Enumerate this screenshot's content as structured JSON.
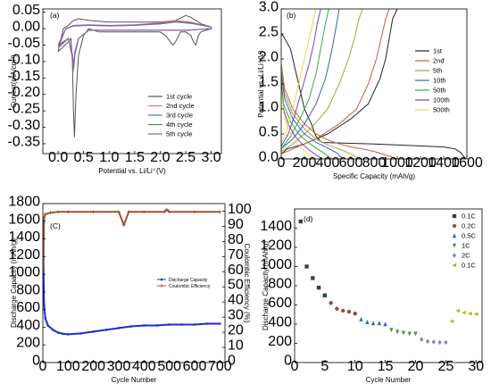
{
  "chart_data": [
    {
      "id": "a",
      "type": "line",
      "panel_label": "(a)",
      "xlabel": "Potential vs. Li/Li⁺(V)",
      "ylabel": "Current(mA/cm²)",
      "xlim": [
        -0.3,
        3.2
      ],
      "ylim": [
        -0.38,
        0.06
      ],
      "xticks": [
        0.0,
        0.5,
        1.0,
        1.5,
        2.0,
        2.5,
        3.0
      ],
      "xtick_labels": [
        "0.0",
        "0.5",
        "1.0",
        "1.5",
        "2.0",
        "2.5",
        "3.0"
      ],
      "yticks": [
        0.05,
        0.0,
        -0.05,
        -0.1,
        -0.15,
        -0.2,
        -0.25,
        -0.3,
        -0.35
      ],
      "ytick_labels": [
        "0.05",
        "0.00",
        "-0.05",
        "-0.10",
        "-0.15",
        "-0.20",
        "-0.25",
        "-0.30",
        "-0.35"
      ],
      "legend_position": "right-middle",
      "series": [
        {
          "name": "1st cycle",
          "color": "#555555",
          "x": [
            0.0,
            0.2,
            0.25,
            0.28,
            0.3,
            0.32,
            0.35,
            0.4,
            0.5,
            0.6,
            0.8,
            1.0,
            1.2,
            1.5,
            1.8,
            2.0,
            2.1,
            2.2,
            2.25,
            2.3,
            2.4,
            2.5,
            2.6,
            2.65,
            2.7,
            2.75,
            2.8,
            2.9,
            3.0,
            3.0,
            2.8,
            2.6,
            2.5,
            2.3,
            2.0,
            1.5,
            1.0,
            0.6,
            0.4,
            0.3,
            0.2,
            0.1,
            0.0
          ],
          "y": [
            -0.07,
            -0.04,
            -0.03,
            -0.1,
            -0.25,
            -0.33,
            -0.2,
            -0.08,
            -0.02,
            0.0,
            -0.01,
            -0.01,
            -0.01,
            -0.01,
            -0.01,
            -0.01,
            -0.02,
            -0.04,
            -0.05,
            -0.04,
            -0.01,
            -0.01,
            -0.02,
            -0.04,
            -0.05,
            -0.02,
            -0.01,
            -0.005,
            0.0,
            0.005,
            0.015,
            0.035,
            0.04,
            0.025,
            0.02,
            0.02,
            0.02,
            0.025,
            0.03,
            0.025,
            0.01,
            0.0,
            -0.07
          ]
        },
        {
          "name": "2nd cycle",
          "color": "#e07a5f",
          "x": [
            0.0,
            0.2,
            0.28,
            0.3,
            0.33,
            0.4,
            0.6,
            1.0,
            1.5,
            2.0,
            2.5,
            3.0,
            3.0,
            2.6,
            2.3,
            2.0,
            1.5,
            1.0,
            0.6,
            0.3,
            0.15,
            0.0
          ],
          "y": [
            -0.06,
            -0.03,
            -0.09,
            -0.13,
            -0.08,
            -0.03,
            -0.005,
            -0.005,
            -0.005,
            -0.005,
            -0.005,
            0.0,
            0.005,
            0.02,
            0.025,
            0.018,
            0.012,
            0.01,
            0.012,
            0.01,
            0.0,
            -0.06
          ]
        },
        {
          "name": "3rd cycle",
          "color": "#4a73c8",
          "x": [
            0.0,
            0.2,
            0.28,
            0.3,
            0.33,
            0.4,
            0.6,
            1.0,
            1.5,
            2.0,
            2.5,
            3.0,
            3.0,
            2.6,
            2.3,
            2.0,
            1.5,
            1.0,
            0.6,
            0.3,
            0.15,
            0.0
          ],
          "y": [
            -0.055,
            -0.03,
            -0.085,
            -0.12,
            -0.075,
            -0.03,
            -0.005,
            -0.005,
            -0.005,
            -0.005,
            -0.005,
            0.0,
            0.005,
            0.018,
            0.022,
            0.016,
            0.011,
            0.009,
            0.011,
            0.009,
            0.0,
            -0.055
          ]
        },
        {
          "name": "4th cycle",
          "color": "#4d8a5a",
          "x": [
            0.0,
            0.2,
            0.28,
            0.3,
            0.33,
            0.4,
            0.6,
            1.0,
            1.5,
            2.0,
            2.5,
            3.0,
            3.0,
            2.6,
            2.3,
            2.0,
            1.5,
            1.0,
            0.6,
            0.3,
            0.15,
            0.0
          ],
          "y": [
            -0.05,
            -0.03,
            -0.08,
            -0.115,
            -0.07,
            -0.03,
            -0.005,
            -0.005,
            -0.005,
            -0.005,
            -0.005,
            0.0,
            0.005,
            0.017,
            0.021,
            0.015,
            0.01,
            0.008,
            0.01,
            0.008,
            0.0,
            -0.05
          ]
        },
        {
          "name": "5th cycle",
          "color": "#8a5cc2",
          "x": [
            0.0,
            0.2,
            0.28,
            0.3,
            0.33,
            0.4,
            0.6,
            1.0,
            1.5,
            2.0,
            2.5,
            3.0,
            3.0,
            2.6,
            2.3,
            2.0,
            1.5,
            1.0,
            0.6,
            0.3,
            0.15,
            0.0
          ],
          "y": [
            -0.05,
            -0.03,
            -0.078,
            -0.11,
            -0.068,
            -0.03,
            -0.005,
            -0.005,
            -0.005,
            -0.005,
            -0.005,
            0.0,
            0.005,
            0.016,
            0.02,
            0.014,
            0.01,
            0.008,
            0.01,
            0.008,
            0.0,
            -0.05
          ]
        }
      ]
    },
    {
      "id": "b",
      "type": "line",
      "panel_label": "(b)",
      "xlabel": "Specific Capacity (mAh/g)",
      "ylabel": "Potential vs. Li/Li⁺(V)",
      "xlim": [
        0,
        1600
      ],
      "ylim": [
        0,
        3.0
      ],
      "xticks": [
        0,
        200,
        400,
        600,
        800,
        1000,
        1200,
        1400,
        1600
      ],
      "xtick_labels": [
        "0",
        "200",
        "400",
        "600",
        "800",
        "1000",
        "1200",
        "1400",
        "1600"
      ],
      "yticks": [
        0.0,
        0.5,
        1.0,
        1.5,
        2.0,
        2.5,
        3.0
      ],
      "ytick_labels": [
        "0.0",
        "0.5",
        "1.0",
        "1.5",
        "2.0",
        "2.5",
        "3.0"
      ],
      "legend_position": "right-middle",
      "series": [
        {
          "name": "1st",
          "color": "#222222",
          "x": [
            0,
            20,
            80,
            150,
            200,
            260,
            300,
            350,
            500,
            800,
            1100,
            1400,
            1500,
            1550,
            1590
          ],
          "y": [
            2.5,
            2.45,
            2.2,
            1.5,
            1.0,
            0.7,
            0.45,
            0.33,
            0.32,
            0.3,
            0.27,
            0.24,
            0.2,
            0.12,
            0.0
          ],
          "charge_x": [
            0,
            50,
            200,
            400,
            600,
            750,
            850,
            900,
            930,
            960,
            1000
          ],
          "charge_y": [
            0.1,
            0.2,
            0.3,
            0.5,
            0.8,
            1.1,
            1.6,
            2.0,
            2.4,
            2.8,
            3.0
          ]
        },
        {
          "name": "2nd",
          "color": "#c75b45",
          "x": [
            0,
            30,
            100,
            200,
            300,
            400,
            500,
            600,
            700,
            800,
            900,
            1000
          ],
          "y": [
            1.9,
            1.4,
            1.0,
            0.7,
            0.5,
            0.38,
            0.3,
            0.24,
            0.2,
            0.15,
            0.08,
            0.0
          ],
          "charge_x": [
            0,
            100,
            300,
            500,
            650,
            750,
            820,
            870,
            900,
            930
          ],
          "charge_y": [
            0.1,
            0.2,
            0.4,
            0.7,
            1.0,
            1.5,
            2.0,
            2.5,
            2.8,
            3.0
          ]
        },
        {
          "name": "5th",
          "color": "#9ea63a",
          "x": [
            0,
            30,
            100,
            200,
            300,
            400,
            500,
            600,
            680
          ],
          "y": [
            1.8,
            1.3,
            0.9,
            0.6,
            0.4,
            0.28,
            0.2,
            0.1,
            0.0
          ],
          "charge_x": [
            0,
            100,
            250,
            400,
            500,
            580,
            630,
            670,
            700
          ],
          "charge_y": [
            0.15,
            0.3,
            0.6,
            1.0,
            1.5,
            2.0,
            2.4,
            2.8,
            3.0
          ]
        },
        {
          "name": "10th",
          "color": "#3b5fc0",
          "x": [
            0,
            30,
            100,
            200,
            300,
            400,
            480,
            530
          ],
          "y": [
            1.7,
            1.2,
            0.8,
            0.5,
            0.33,
            0.22,
            0.12,
            0.0
          ],
          "charge_x": [
            0,
            100,
            200,
            300,
            380,
            430,
            470,
            500
          ],
          "charge_y": [
            0.2,
            0.4,
            0.7,
            1.1,
            1.6,
            2.1,
            2.6,
            3.0
          ]
        },
        {
          "name": "50th",
          "color": "#3ca64a",
          "x": [
            0,
            20,
            80,
            150,
            220,
            300,
            380,
            440
          ],
          "y": [
            1.6,
            1.1,
            0.75,
            0.5,
            0.35,
            0.22,
            0.1,
            0.0
          ],
          "charge_x": [
            0,
            80,
            160,
            240,
            300,
            340,
            380,
            410
          ],
          "charge_y": [
            0.2,
            0.45,
            0.8,
            1.2,
            1.7,
            2.2,
            2.7,
            3.0
          ]
        },
        {
          "name": "100th",
          "color": "#7b3fb8",
          "x": [
            0,
            20,
            60,
            120,
            180,
            240,
            300,
            350
          ],
          "y": [
            1.5,
            1.0,
            0.7,
            0.45,
            0.3,
            0.18,
            0.08,
            0.0
          ],
          "charge_x": [
            0,
            60,
            120,
            180,
            240,
            280,
            310,
            340
          ],
          "charge_y": [
            0.25,
            0.5,
            0.9,
            1.4,
            1.9,
            2.3,
            2.7,
            3.0
          ]
        },
        {
          "name": "500th",
          "color": "#e6d94a",
          "x": [
            0,
            20,
            50,
            100,
            150,
            200,
            250,
            290
          ],
          "y": [
            1.4,
            0.95,
            0.65,
            0.42,
            0.28,
            0.16,
            0.07,
            0.0
          ],
          "charge_x": [
            0,
            50,
            100,
            150,
            200,
            240,
            270,
            300
          ],
          "charge_y": [
            0.3,
            0.6,
            1.0,
            1.5,
            2.0,
            2.4,
            2.7,
            3.0
          ]
        }
      ]
    },
    {
      "id": "c",
      "type": "scatter",
      "panel_label": "(C)",
      "xlabel": "Cycle Number",
      "ylabel": "Discharge Capacity (mAh/g)",
      "y2label": "Coulombic Efficiency (%)",
      "xlim": [
        0,
        720
      ],
      "ylim": [
        0,
        1800
      ],
      "y2lim": [
        0,
        105
      ],
      "xticks": [
        0,
        100,
        200,
        300,
        400,
        500,
        600,
        700
      ],
      "xtick_labels": [
        "0",
        "100",
        "200",
        "300",
        "400",
        "500",
        "600",
        "700"
      ],
      "yticks": [
        0,
        200,
        400,
        600,
        800,
        1000,
        1200,
        1400,
        1600,
        1800
      ],
      "ytick_labels": [
        "0",
        "200",
        "400",
        "600",
        "800",
        "1000",
        "1200",
        "1400",
        "1600",
        "1800"
      ],
      "y2ticks": [
        0,
        10,
        20,
        30,
        40,
        50,
        60,
        70,
        80,
        90,
        100
      ],
      "y2tick_labels": [
        "0",
        "10",
        "20",
        "30",
        "40",
        "50",
        "60",
        "70",
        "80",
        "90",
        "100"
      ],
      "legend_position": "right-middle",
      "series": [
        {
          "name": "Discharge Capacity",
          "color": "#1f2fbf",
          "axis": "left",
          "x": [
            1,
            3,
            5,
            10,
            20,
            40,
            60,
            80,
            100,
            150,
            200,
            250,
            300,
            350,
            400,
            450,
            500,
            550,
            600,
            650,
            700
          ],
          "y": [
            1600,
            900,
            650,
            500,
            420,
            370,
            340,
            325,
            320,
            330,
            350,
            370,
            390,
            410,
            420,
            420,
            430,
            430,
            430,
            440,
            440
          ]
        },
        {
          "name": "Coulombic Efficiency",
          "color": "#a0522d",
          "axis": "right",
          "x": [
            1,
            5,
            10,
            30,
            60,
            100,
            200,
            300,
            320,
            340,
            400,
            480,
            490,
            500,
            600,
            700
          ],
          "y": [
            60,
            96,
            98,
            99,
            99.5,
            99.5,
            99.5,
            99.5,
            91,
            99.5,
            99.5,
            99.5,
            101,
            99.5,
            99.5,
            99.5
          ]
        }
      ]
    },
    {
      "id": "d",
      "type": "scatter",
      "panel_label": "(d)",
      "xlabel": "Cycle Number",
      "ylabel": "Discharge Capacity (mAh/g)",
      "xlim": [
        0,
        31
      ],
      "ylim": [
        0,
        1600
      ],
      "xticks": [
        0,
        5,
        10,
        15,
        20,
        25,
        30
      ],
      "xtick_labels": [
        "0",
        "5",
        "10",
        "15",
        "20",
        "25",
        "30"
      ],
      "yticks": [
        0,
        200,
        400,
        600,
        800,
        1000,
        1200,
        1400
      ],
      "ytick_labels": [
        "0",
        "200",
        "400",
        "600",
        "800",
        "1000",
        "1200",
        "1400"
      ],
      "legend_position": "top-right",
      "series": [
        {
          "name": "0.1C",
          "color": "#3d3d3d",
          "marker": "square",
          "x": [
            1,
            2,
            3,
            4,
            5
          ],
          "y": [
            1470,
            1000,
            880,
            780,
            700
          ]
        },
        {
          "name": "0.2C",
          "color": "#a0483a",
          "marker": "circle",
          "x": [
            6,
            7,
            8,
            9,
            10
          ],
          "y": [
            620,
            560,
            540,
            530,
            510
          ]
        },
        {
          "name": "0.5C",
          "color": "#3b5fc0",
          "marker": "triangle-up",
          "x": [
            11,
            12,
            13,
            14,
            15
          ],
          "y": [
            450,
            420,
            410,
            410,
            400
          ]
        },
        {
          "name": "1C",
          "color": "#4d8a5a",
          "marker": "triangle-down",
          "x": [
            16,
            17,
            18,
            19,
            20
          ],
          "y": [
            340,
            320,
            310,
            300,
            300
          ]
        },
        {
          "name": "2C",
          "color": "#8a7fd0",
          "marker": "diamond",
          "x": [
            21,
            22,
            23,
            24,
            25
          ],
          "y": [
            240,
            220,
            215,
            210,
            210
          ]
        },
        {
          "name": "0.1C",
          "color": "#b8b020",
          "marker": "triangle-left",
          "x": [
            26,
            27,
            28,
            29,
            30
          ],
          "y": [
            430,
            540,
            520,
            510,
            505
          ]
        }
      ]
    }
  ]
}
